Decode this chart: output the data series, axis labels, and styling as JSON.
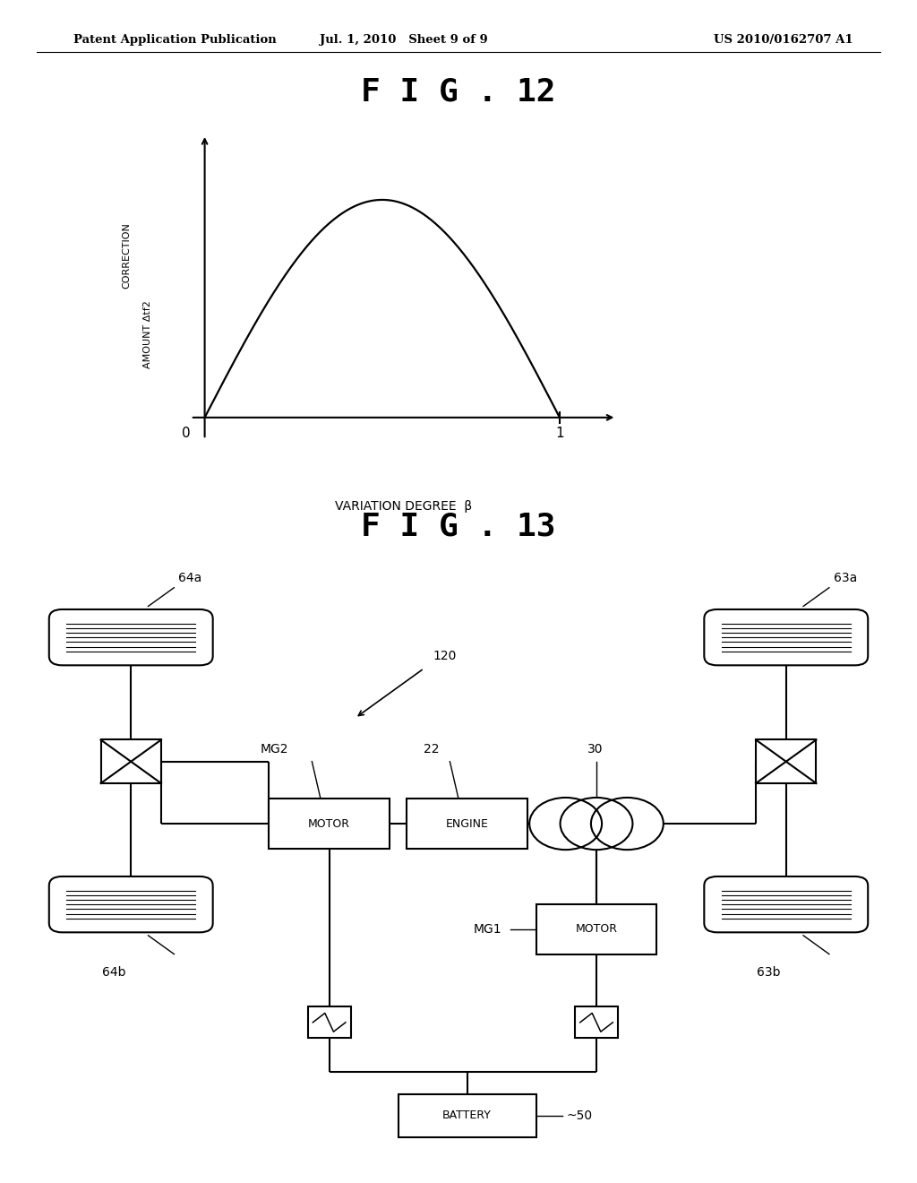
{
  "bg_color": "#ffffff",
  "header_left": "Patent Application Publication",
  "header_mid": "Jul. 1, 2010   Sheet 9 of 9",
  "header_right": "US 2010/0162707 A1",
  "fig12_title": "F I G . 12",
  "fig13_title": "F I G . 13",
  "ylabel_line1": "CORRECTION",
  "ylabel_line2": "AMOUNT Δtf2",
  "xlabel": "VARIATION DEGREE  β",
  "label_64a": "64a",
  "label_64b": "64b",
  "label_63a": "63a",
  "label_63b": "63b",
  "label_MG2": "MG2",
  "label_22": "22",
  "label_30": "30",
  "label_MG1": "MG1",
  "label_50": "50",
  "label_120": "120",
  "box_MOTOR": "MOTOR",
  "box_ENGINE": "ENGINE",
  "box_BATTERY": "BATTERY"
}
